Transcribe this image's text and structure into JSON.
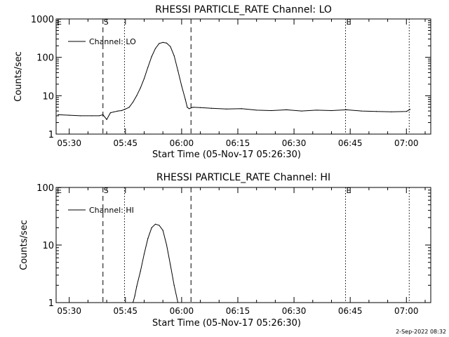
{
  "footer_timestamp": "2-Sep-2022 08:32",
  "chart_data": [
    {
      "type": "line",
      "title": "RHESSI PARTICLE_RATE Channel: LO",
      "xlabel": "Start Time (05-Nov-17 05:26:30)",
      "ylabel": "Counts/sec",
      "yscale": "log",
      "ylim": [
        1,
        1000
      ],
      "xlim": [
        "05:26:30",
        "07:06:30"
      ],
      "x_ticks": [
        "05:30",
        "05:45",
        "06:00",
        "06:15",
        "06:30",
        "06:45",
        "07:00"
      ],
      "y_ticks": [
        "1",
        "10",
        "100",
        "1000"
      ],
      "legend": "top-left",
      "series": [
        {
          "name": "Channel: LO",
          "x": [
            "05:27:00",
            "05:30:00",
            "05:33:00",
            "05:36:00",
            "05:38:00",
            "05:39:00",
            "05:40:00",
            "05:41:00",
            "05:42:00",
            "05:43:00",
            "05:44:00",
            "05:45:00",
            "05:46:00",
            "05:47:00",
            "05:48:00",
            "05:49:00",
            "05:50:00",
            "05:51:00",
            "05:52:00",
            "05:53:00",
            "05:54:00",
            "05:55:00",
            "05:56:00",
            "05:57:00",
            "05:58:00",
            "05:59:00",
            "06:00:00",
            "06:01:00",
            "06:01:30",
            "06:02:00",
            "06:03:00",
            "06:05:00",
            "06:08:00",
            "06:12:00",
            "06:16:00",
            "06:20:00",
            "06:24:00",
            "06:28:00",
            "06:32:00",
            "06:36:00",
            "06:40:00",
            "06:44:00",
            "06:48:00",
            "06:52:00",
            "06:56:00",
            "07:00:00",
            "07:01:00"
          ],
          "values": [
            3.2,
            3.1,
            3.0,
            3.0,
            3.0,
            3.2,
            2.4,
            3.6,
            3.8,
            4.0,
            4.1,
            4.5,
            5.0,
            6.8,
            10,
            16,
            28,
            55,
            105,
            170,
            230,
            245,
            235,
            190,
            110,
            45,
            18,
            8,
            5,
            4.6,
            5.0,
            4.9,
            4.7,
            4.5,
            4.6,
            4.2,
            4.1,
            4.3,
            4.0,
            4.2,
            4.1,
            4.3,
            4.0,
            3.9,
            3.8,
            3.9,
            4.4
          ]
        }
      ],
      "markers": [
        {
          "label": "S",
          "time": "05:39:00",
          "style": "dashed"
        },
        {
          "label": "",
          "time": "05:44:45",
          "style": "dotted"
        },
        {
          "label": "",
          "time": "06:02:30",
          "style": "dashed"
        },
        {
          "label": "E",
          "time": "06:43:45",
          "style": "dotted"
        },
        {
          "label": "",
          "time": "07:00:45",
          "style": "dotted"
        }
      ],
      "corner_labels": [
        "E"
      ]
    },
    {
      "type": "line",
      "title": "RHESSI PARTICLE_RATE Channel: HI",
      "xlabel": "Start Time (05-Nov-17 05:26:30)",
      "ylabel": "Counts/sec",
      "yscale": "log",
      "ylim": [
        1,
        100
      ],
      "xlim": [
        "05:26:30",
        "07:06:30"
      ],
      "x_ticks": [
        "05:30",
        "05:45",
        "06:00",
        "06:15",
        "06:30",
        "06:45",
        "07:00"
      ],
      "y_ticks": [
        "1",
        "10",
        "100"
      ],
      "legend": "top-left",
      "series": [
        {
          "name": "Channel: HI",
          "x": [
            "05:47:00",
            "05:47:30",
            "05:48:00",
            "05:49:00",
            "05:50:00",
            "05:51:00",
            "05:52:00",
            "05:53:00",
            "05:54:00",
            "05:55:00",
            "05:56:00",
            "05:57:00",
            "05:58:00",
            "05:59:00"
          ],
          "values": [
            1.0,
            1.3,
            1.9,
            3.5,
            7,
            13,
            20,
            23,
            22,
            18,
            10,
            4.5,
            2.0,
            1.0
          ]
        }
      ],
      "markers": [
        {
          "label": "S",
          "time": "05:39:00",
          "style": "dashed"
        },
        {
          "label": "",
          "time": "05:44:45",
          "style": "dotted"
        },
        {
          "label": "",
          "time": "06:02:30",
          "style": "dashed"
        },
        {
          "label": "E",
          "time": "06:43:45",
          "style": "dotted"
        },
        {
          "label": "",
          "time": "07:00:45",
          "style": "dotted"
        }
      ],
      "corner_labels": [
        "E"
      ]
    }
  ]
}
